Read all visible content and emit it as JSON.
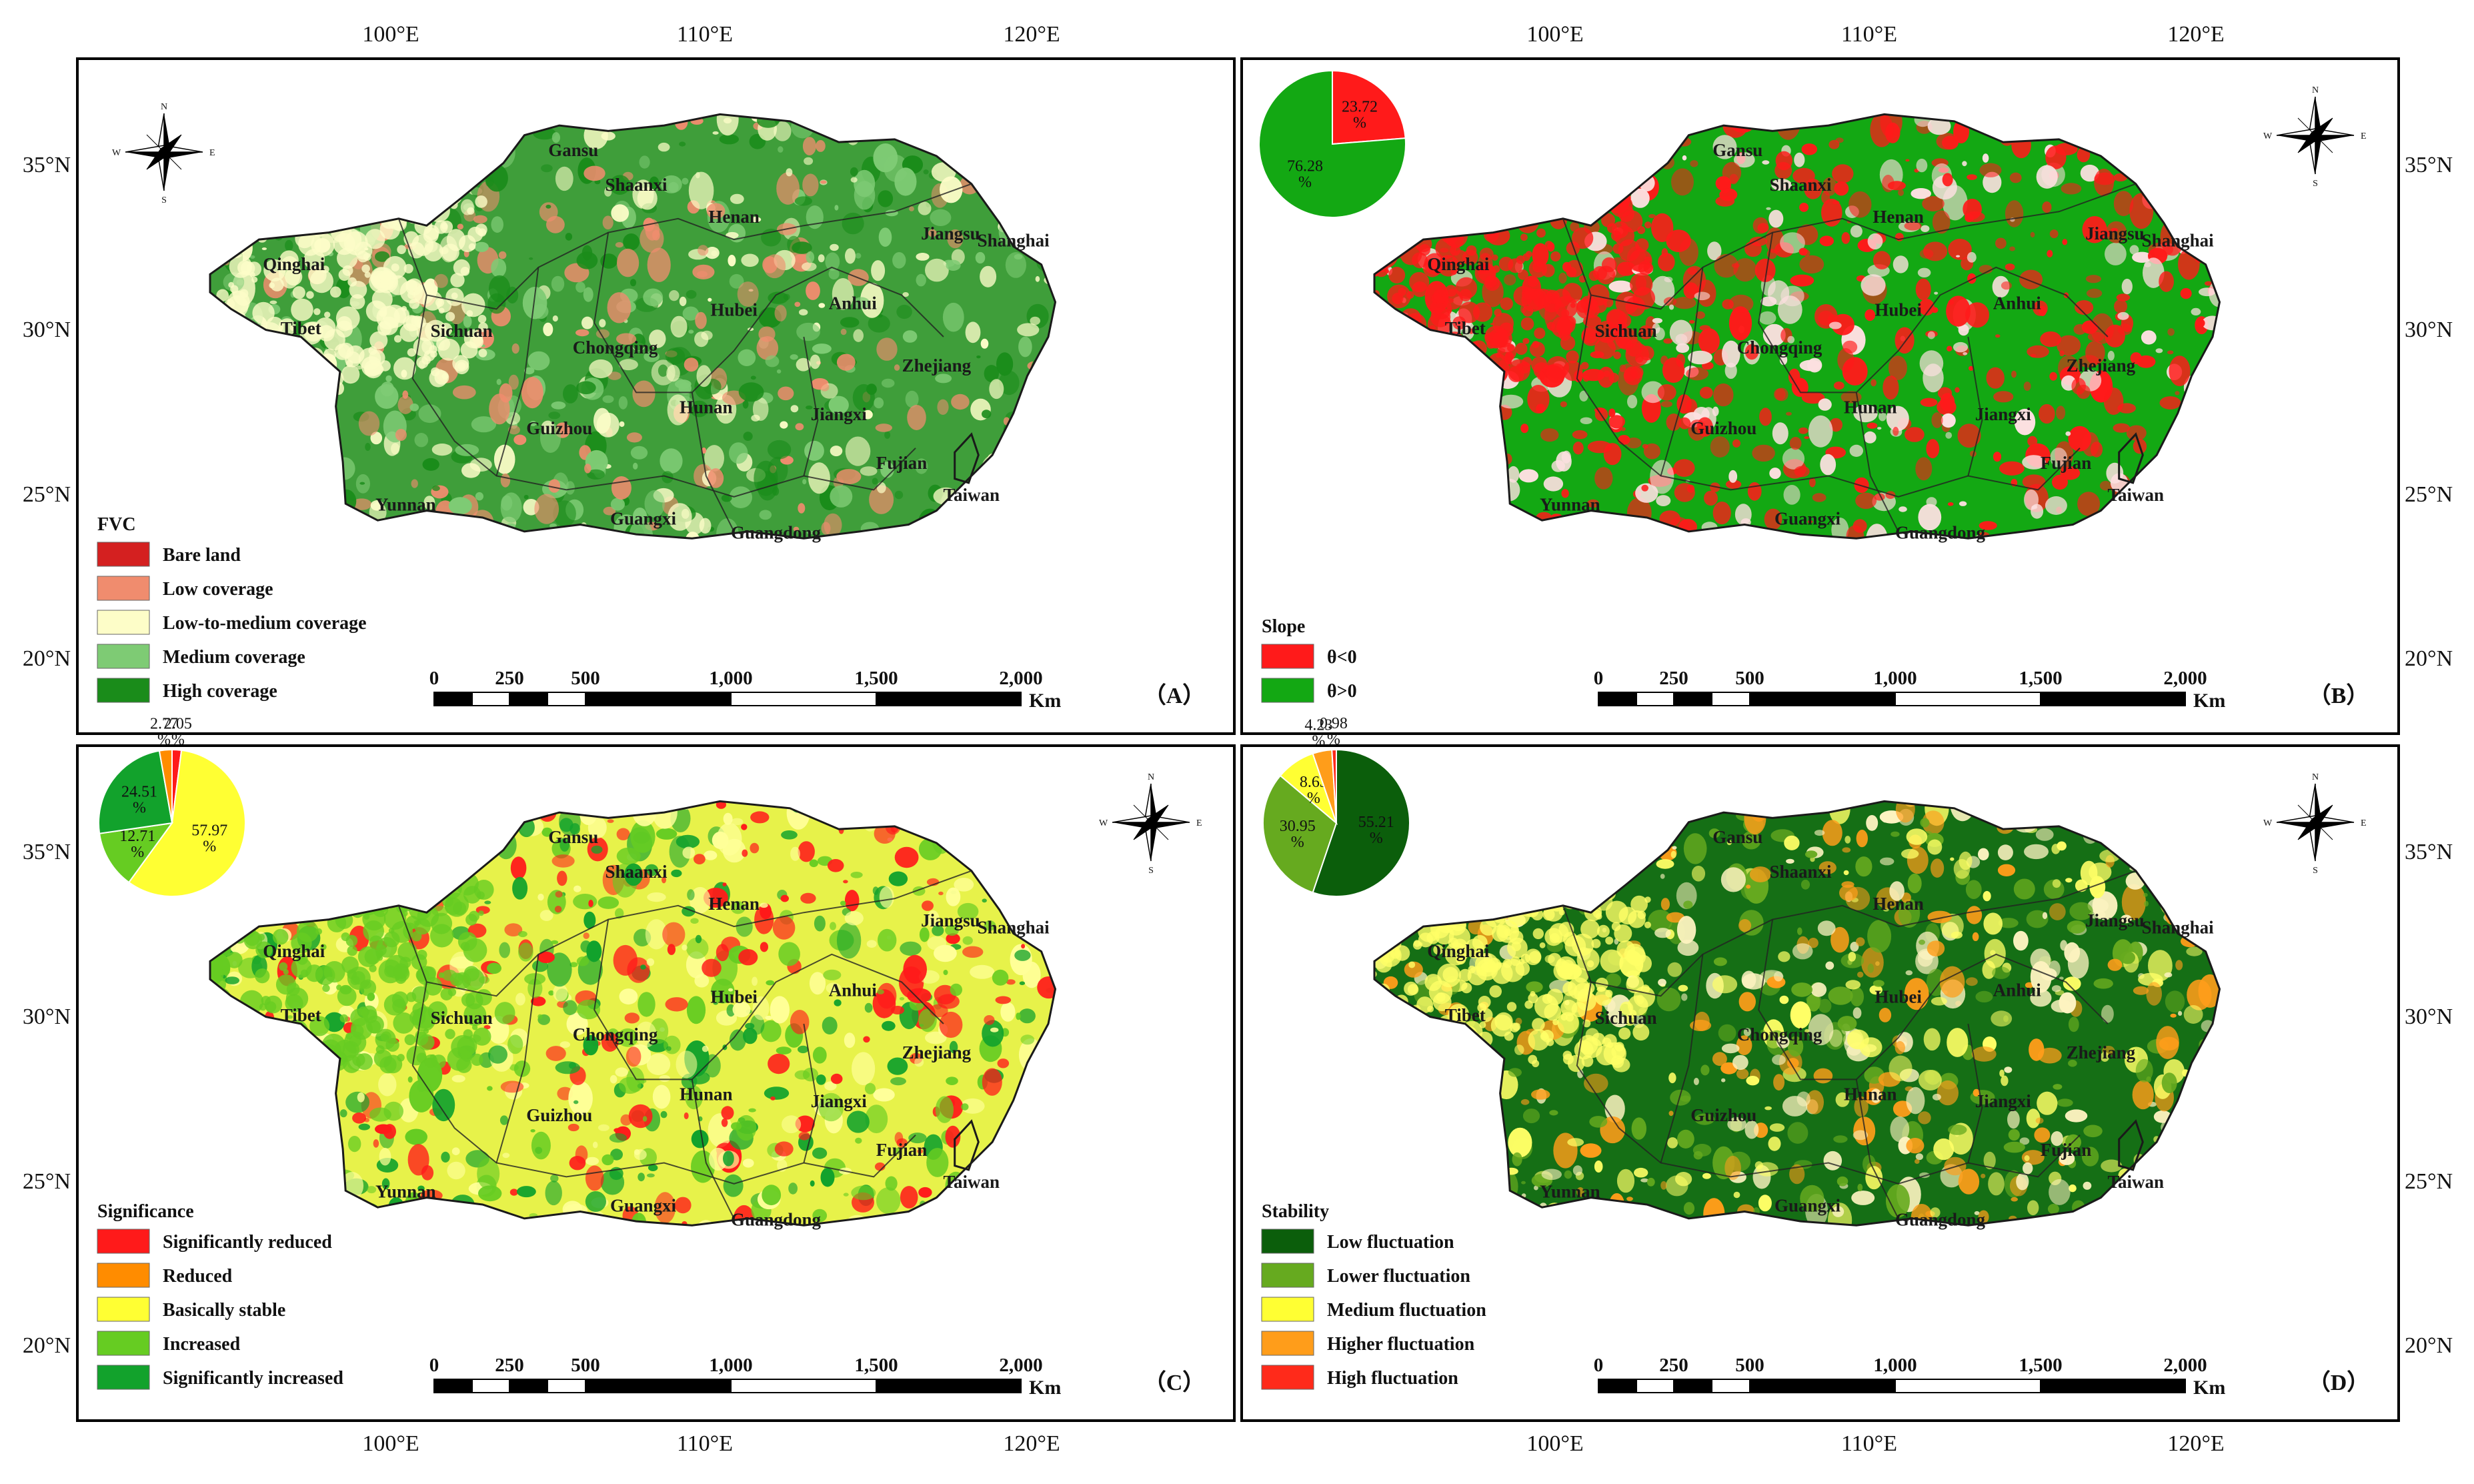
{
  "figure": {
    "top_lon_labels": [
      "100°E",
      "110°E",
      "120°E"
    ],
    "bottom_lon_labels": [
      "100°E",
      "110°E",
      "120°E"
    ],
    "lat_labels": [
      "35°N",
      "30°N",
      "25°N",
      "20°N"
    ],
    "scale_labels": [
      "0",
      "250",
      "500",
      "1,000",
      "1,500",
      "2,000"
    ],
    "scale_unit": "Km",
    "compass": {
      "n": "N",
      "s": "S",
      "e": "E",
      "w": "W"
    }
  },
  "provinces": [
    "Qinghai",
    "Tibet",
    "Gansu",
    "Shaanxi",
    "Henan",
    "Jiangsu",
    "Shanghai",
    "Sichuan",
    "Chongqing",
    "Hubei",
    "Anhui",
    "Zhejiang",
    "Guizhou",
    "Hunan",
    "Jiangxi",
    "Fujian",
    "Yunnan",
    "Guangxi",
    "Guangdong",
    "Taiwan"
  ],
  "panels": [
    {
      "id": "A",
      "label": "（A）",
      "legend_title": "FVC",
      "legend": [
        {
          "label": "Bare land",
          "color": "#d42020"
        },
        {
          "label": "Low coverage",
          "color": "#f08c6e"
        },
        {
          "label": "Low-to-medium coverage",
          "color": "#fdfdc8"
        },
        {
          "label": "Medium coverage",
          "color": "#7ecb74"
        },
        {
          "label": "High coverage",
          "color": "#1a8c1a"
        }
      ],
      "map_base": "#3f9e3a",
      "map_colors": [
        "#7ecb74",
        "#fdfdc8",
        "#f08c6e",
        "#1a8c1a"
      ],
      "pie": null
    },
    {
      "id": "B",
      "label": "（B）",
      "legend_title": "Slope",
      "legend": [
        {
          "label": "θ<0",
          "color": "#ff1a1a"
        },
        {
          "label": "θ>0",
          "color": "#13a813"
        }
      ],
      "map_base": "#13a813",
      "map_colors": [
        "#ff1a1a",
        "#ff1a1a",
        "#fce0e0"
      ],
      "pie": {
        "slices": [
          {
            "label": "23.72\n%",
            "value": 23.72,
            "color": "#ff1a1a"
          },
          {
            "label": "76.28\n%",
            "value": 76.28,
            "color": "#13a813"
          }
        ]
      }
    },
    {
      "id": "C",
      "label": "（C）",
      "legend_title": "Significance",
      "legend": [
        {
          "label": "Significantly reduced",
          "color": "#ff1a1a"
        },
        {
          "label": "Reduced",
          "color": "#ff8c00"
        },
        {
          "label": "Basically stable",
          "color": "#ffff33"
        },
        {
          "label": "Increased",
          "color": "#66cc22"
        },
        {
          "label": "Significantly increased",
          "color": "#12a22c"
        }
      ],
      "map_base": "#e7f24a",
      "map_colors": [
        "#12a22c",
        "#66cc22",
        "#ff1a1a",
        "#ffff99"
      ],
      "pie": {
        "slices": [
          {
            "label": "2.05\n%",
            "value": 2.05,
            "color": "#ff1a1a"
          },
          {
            "label": "57.97\n%",
            "value": 57.97,
            "color": "#ffff33"
          },
          {
            "label": "12.71\n%",
            "value": 12.71,
            "color": "#66cc22"
          },
          {
            "label": "24.51\n%",
            "value": 24.51,
            "color": "#12a22c"
          },
          {
            "label": "2.77\n%",
            "value": 2.77,
            "color": "#ff8c00"
          }
        ]
      }
    },
    {
      "id": "D",
      "label": "（D）",
      "legend_title": "Stability",
      "legend": [
        {
          "label": "Low fluctuation",
          "color": "#0b5e0b"
        },
        {
          "label": "Lower fluctuation",
          "color": "#66aa1f"
        },
        {
          "label": "Medium fluctuation",
          "color": "#ffff33"
        },
        {
          "label": "Higher fluctuation",
          "color": "#ff9d1a"
        },
        {
          "label": "High fluctuation",
          "color": "#ff2a1a"
        }
      ],
      "map_base": "#156f15",
      "map_colors": [
        "#66aa1f",
        "#ffff66",
        "#fdf3c0",
        "#ff9d1a"
      ],
      "pie": {
        "slices": [
          {
            "label": "55.21\n%",
            "value": 55.21,
            "color": "#0b5e0b"
          },
          {
            "label": "30.95\n%",
            "value": 30.95,
            "color": "#66aa1f"
          },
          {
            "label": "8.63\n%",
            "value": 8.63,
            "color": "#ffff33"
          },
          {
            "label": "4.23\n%",
            "value": 4.23,
            "color": "#ff9d1a"
          },
          {
            "label": "0.98\n%",
            "value": 0.98,
            "color": "#ff2a1a"
          }
        ]
      }
    }
  ]
}
